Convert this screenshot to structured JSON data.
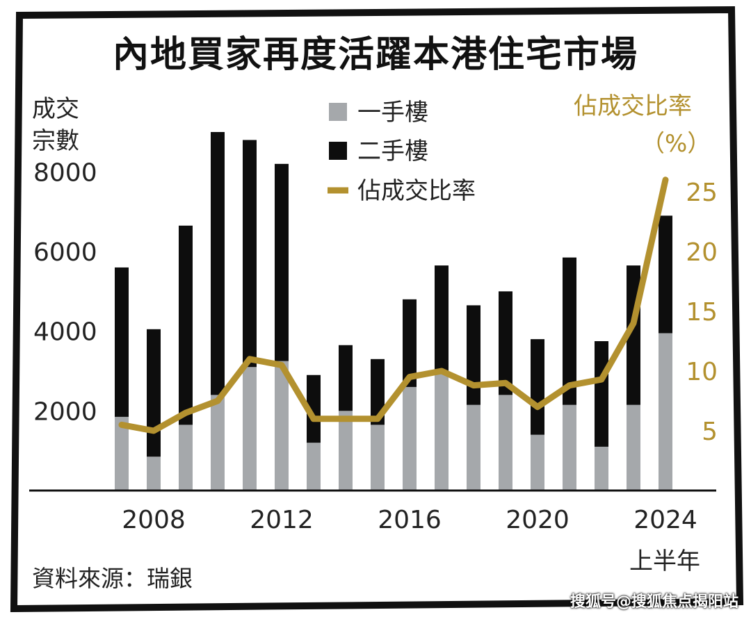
{
  "title": "內地買家再度活躍本港住宅市場",
  "left_axis_label": [
    "成交",
    "宗數"
  ],
  "right_axis_label": [
    "佔成交比率",
    "（%）"
  ],
  "source": "資料來源：瑞銀",
  "last_period_note": "上半年",
  "watermark": "搜狐号@搜狐焦点揭阳站",
  "colors": {
    "first_hand": "#a5a8ab",
    "second_hand": "#0d0d0d",
    "ratio_line": "#b3912f",
    "frame": "#111111"
  },
  "chart_data": {
    "type": "bar",
    "stacked": true,
    "x": [
      2007,
      2008,
      2009,
      2010,
      2011,
      2012,
      2013,
      2014,
      2015,
      2016,
      2017,
      2018,
      2019,
      2020,
      2021,
      2022,
      2023,
      2024
    ],
    "x_tick_labels": [
      "2008",
      "2012",
      "2016",
      "2020",
      "2024"
    ],
    "x_tick_values": [
      2008,
      2012,
      2016,
      2020,
      2024
    ],
    "ylabel": "成交宗數",
    "y_tick_labels": [
      "2000",
      "4000",
      "6000",
      "8000"
    ],
    "ylim": [
      0,
      9000
    ],
    "y2label": "佔成交比率（%）",
    "y2_tick_labels": [
      "5",
      "10",
      "15",
      "20",
      "25"
    ],
    "y2lim": [
      0,
      30
    ],
    "series": [
      {
        "name": "一手樓",
        "kind": "bar",
        "values": [
          1850,
          850,
          1650,
          2400,
          3100,
          3250,
          1200,
          2000,
          1650,
          2600,
          3000,
          2150,
          2400,
          1400,
          2150,
          1100,
          2150,
          3950
        ]
      },
      {
        "name": "二手樓",
        "kind": "bar",
        "values": [
          3750,
          3200,
          5000,
          6600,
          5700,
          4950,
          1700,
          1650,
          1650,
          2200,
          2650,
          2500,
          2600,
          2400,
          3700,
          2650,
          3500,
          2950
        ]
      },
      {
        "name": "佔成交比率",
        "kind": "line",
        "axis": "right",
        "values": [
          5.5,
          5.0,
          6.5,
          7.5,
          11.0,
          10.5,
          6.0,
          6.0,
          6.0,
          9.5,
          10.0,
          8.8,
          9.0,
          7.0,
          8.8,
          9.3,
          14.0,
          26.0
        ]
      }
    ],
    "legend": "top-center",
    "grid": false
  }
}
